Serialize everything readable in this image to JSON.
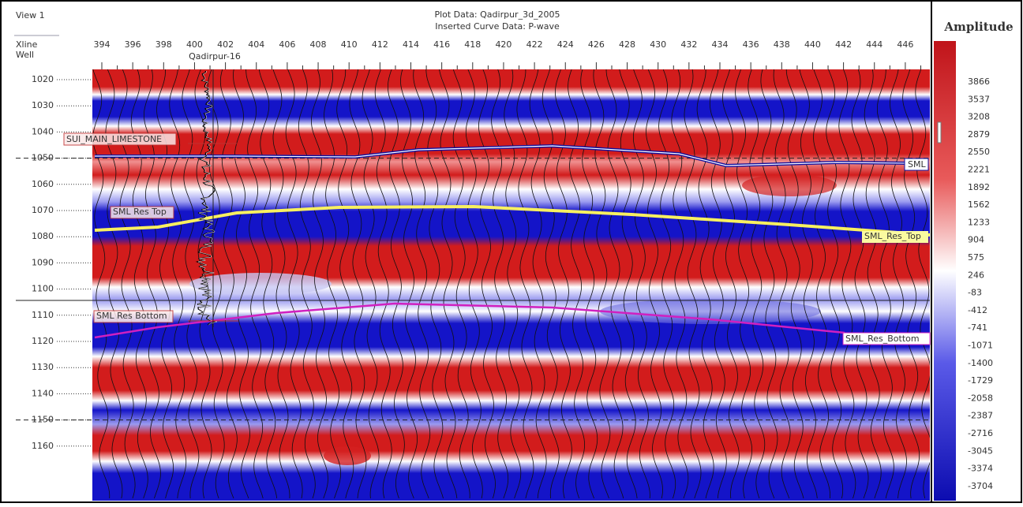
{
  "view": "View 1",
  "header": {
    "plot_data": "Plot Data: Qadirpur_3d_2005",
    "curve_data": "Inserted Curve Data: P-wave"
  },
  "axes": {
    "xline_label": "Xline",
    "well_label": "Well",
    "xlines": [
      394,
      396,
      398,
      400,
      402,
      404,
      406,
      408,
      410,
      412,
      414,
      416,
      418,
      420,
      422,
      424,
      426,
      428,
      430,
      432,
      434,
      436,
      438,
      440,
      442,
      444,
      446
    ],
    "times": [
      1020,
      1030,
      1040,
      1050,
      1060,
      1070,
      1080,
      1090,
      1100,
      1110,
      1120,
      1130,
      1140,
      1150,
      1160
    ]
  },
  "well": "Qadirpur-16",
  "horizons": [
    {
      "left_label": "SUI_MAIN_LIMESTONE",
      "right_label": "SML"
    },
    {
      "left_label": "SML Res Top",
      "right_label": "SML_Res_Top"
    },
    {
      "left_label": "SML Res Bottom",
      "right_label": "SML_Res_Bottom"
    }
  ],
  "colorbar": {
    "title": "Amplitude",
    "labels": [
      3866,
      3537,
      3208,
      2879,
      2550,
      2221,
      1892,
      1562,
      1233,
      904,
      575,
      246,
      -83,
      -412,
      -741,
      -1071,
      -1400,
      -1729,
      -2058,
      -2387,
      -2716,
      -3045,
      -3374,
      -3704
    ]
  }
}
